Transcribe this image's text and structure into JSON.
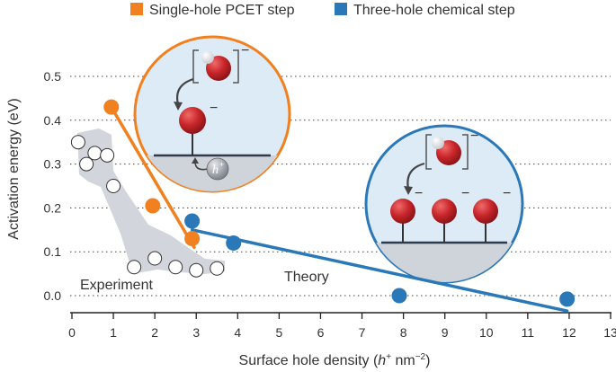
{
  "chart_data": {
    "type": "scatter",
    "title": "",
    "xlabel": "Surface hole density (h+ nm−2)",
    "xlabel_parts": {
      "prefix": "Surface hole density (",
      "var": "h",
      "sup1": "+",
      "mid": " nm",
      "sup2": "−2",
      "suffix": ")"
    },
    "ylabel": "Activation energy (eV)",
    "xlim": [
      0,
      13
    ],
    "ylim": [
      -0.03,
      0.55
    ],
    "xticks": [
      "0",
      "1",
      "2",
      "3",
      "4",
      "5",
      "6",
      "7",
      "8",
      "9",
      "10",
      "11",
      "12",
      "13"
    ],
    "yticks": [
      "0.0",
      "0.1",
      "0.2",
      "0.3",
      "0.4",
      "0.5"
    ],
    "grid": "horizontal dotted",
    "legend": [
      {
        "label": "Single-hole PCET step",
        "color": "#F08020",
        "marker": "square"
      },
      {
        "label": "Three-hole chemical step",
        "color": "#2A78B8",
        "marker": "square"
      }
    ],
    "series": [
      {
        "name": "Experiment",
        "color": "#ffffff",
        "points": [
          {
            "x": 0.15,
            "y": 0.35
          },
          {
            "x": 0.35,
            "y": 0.3
          },
          {
            "x": 0.55,
            "y": 0.325
          },
          {
            "x": 0.85,
            "y": 0.32
          },
          {
            "x": 1.0,
            "y": 0.25
          },
          {
            "x": 1.5,
            "y": 0.065
          },
          {
            "x": 2.0,
            "y": 0.085
          },
          {
            "x": 2.5,
            "y": 0.065
          },
          {
            "x": 3.0,
            "y": 0.058
          },
          {
            "x": 3.5,
            "y": 0.062
          }
        ]
      },
      {
        "name": "Single-hole PCET step",
        "color": "#F08020",
        "points": [
          {
            "x": 0.95,
            "y": 0.43
          },
          {
            "x": 1.95,
            "y": 0.205
          },
          {
            "x": 2.9,
            "y": 0.13
          }
        ],
        "fit": [
          {
            "x": 0.95,
            "y": 0.43
          },
          {
            "x": 2.95,
            "y": 0.11
          }
        ]
      },
      {
        "name": "Three-hole chemical step",
        "color": "#2A78B8",
        "points": [
          {
            "x": 2.9,
            "y": 0.17
          },
          {
            "x": 3.9,
            "y": 0.12
          },
          {
            "x": 7.9,
            "y": 0.0
          },
          {
            "x": 11.95,
            "y": -0.008
          }
        ],
        "fit": [
          {
            "x": 2.9,
            "y": 0.15
          },
          {
            "x": 11.95,
            "y": -0.035
          }
        ]
      }
    ],
    "annotations": [
      "Experiment",
      "Theory"
    ]
  },
  "insets": {
    "pcet": {
      "bracket_charge": "−",
      "adsorbed_charge": "−",
      "hole_label": "h",
      "hole_sup": "+"
    },
    "chemical": {
      "bracket_charge": "−",
      "site_charges": [
        "−",
        "−",
        "−"
      ]
    }
  }
}
